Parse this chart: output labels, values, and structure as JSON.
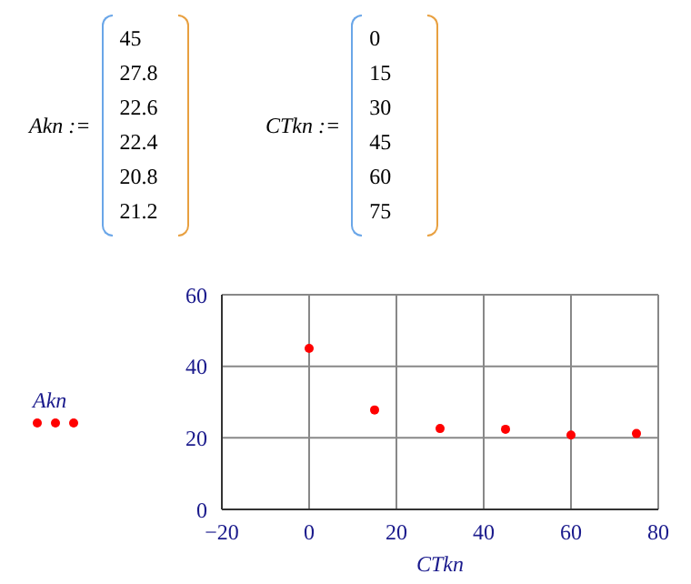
{
  "chart_data": {
    "type": "scatter",
    "x": [
      0,
      15,
      30,
      45,
      60,
      75
    ],
    "series": [
      {
        "color": "#ff0000",
        "values": [
          45,
          27.8,
          22.6,
          22.4,
          20.8,
          21.2
        ]
      }
    ],
    "xlabel": "CTkn",
    "annotations": [
      "Akn :=",
      "45",
      "27.8",
      "22.6",
      "22.4",
      "20.8",
      "21.2",
      "CTkn :=",
      "0",
      "15",
      "30",
      "45",
      "60",
      "75",
      "Akn"
    ],
    "xlim": [
      -20,
      80
    ],
    "xticks": [
      -20,
      0,
      20,
      40,
      60,
      80
    ],
    "ylim": [
      0,
      60
    ],
    "yticks": [
      0,
      20,
      40,
      60
    ],
    "grid": true,
    "marker": "circle"
  }
}
